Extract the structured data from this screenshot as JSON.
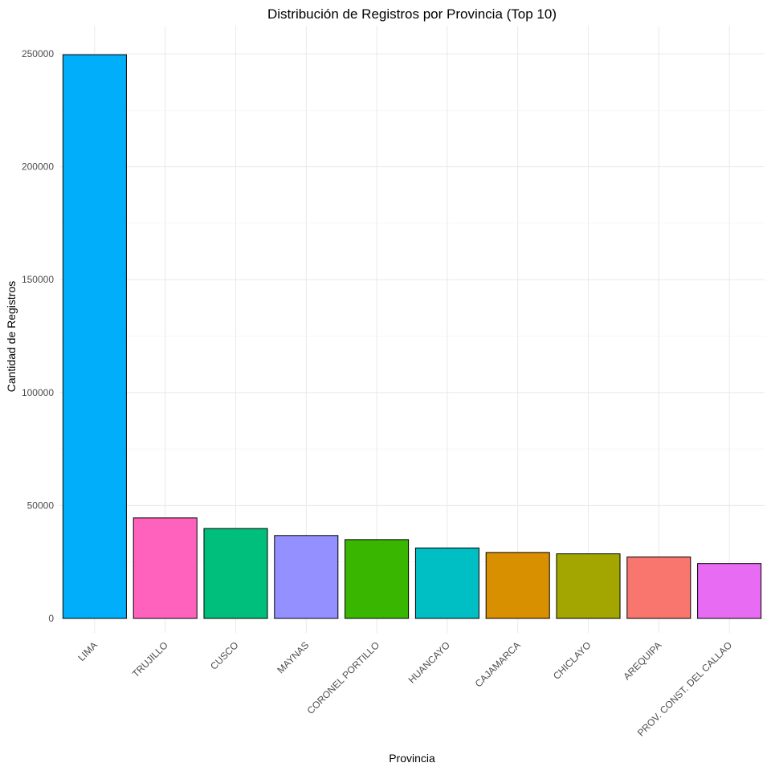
{
  "chart_data": {
    "type": "bar",
    "title": "Distribución de Registros por Provincia (Top 10)",
    "xlabel": "Provincia",
    "ylabel": "Cantidad de Registros",
    "categories": [
      "LIMA",
      "TRUJILLO",
      "CUSCO",
      "MAYNAS",
      "CORONEL PORTILLO",
      "HUANCAYO",
      "CAJAMARCA",
      "CHICLAYO",
      "AREQUIPA",
      "PROV. CONST. DEL CALLAO"
    ],
    "values": [
      249600,
      44500,
      39800,
      36700,
      34900,
      31200,
      29200,
      28600,
      27200,
      24300
    ],
    "colors": [
      "#00AEFA",
      "#FF62BC",
      "#00BF7D",
      "#9590FF",
      "#39B600",
      "#00BFC4",
      "#D89000",
      "#A3A500",
      "#F8766D",
      "#E76BF3"
    ],
    "ylim": [
      0,
      262000
    ],
    "yticks": [
      0,
      50000,
      100000,
      150000,
      200000,
      250000
    ],
    "ytick_labels": [
      "0",
      "50000",
      "100000",
      "150000",
      "200000",
      "250000"
    ],
    "grid": true,
    "legend": "none"
  }
}
